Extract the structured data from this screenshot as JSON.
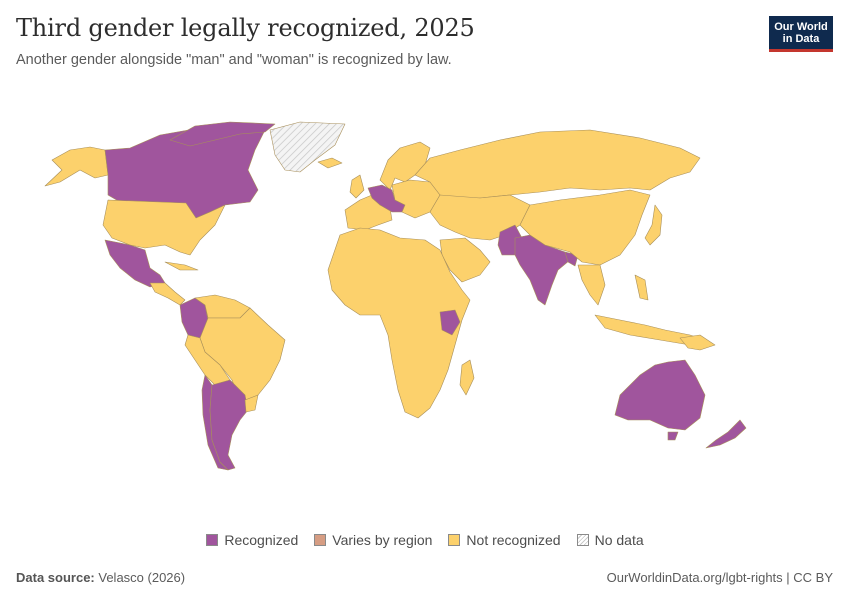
{
  "header": {
    "title": "Third gender legally recognized, 2025",
    "subtitle": "Another gender alongside \"man\" and \"woman\" is recognized by law."
  },
  "logo": {
    "line1": "Our World",
    "line2": "in Data"
  },
  "colors": {
    "recognized": "#a0559d",
    "varies": "#d69d83",
    "not_recognized": "#fcd16c",
    "no_data": "#eeeeee",
    "border": "#a88f5a"
  },
  "legend": [
    {
      "key": "recognized",
      "label": "Recognized"
    },
    {
      "key": "varies",
      "label": "Varies by region"
    },
    {
      "key": "not_recognized",
      "label": "Not recognized"
    },
    {
      "key": "no_data",
      "label": "No data"
    }
  ],
  "map_data": {
    "recognized": [
      "Canada",
      "United States (partial, shown as not recognized)",
      "Mexico",
      "Colombia",
      "Argentina",
      "Chile",
      "Germany",
      "Austria",
      "Netherlands",
      "India",
      "Nepal",
      "Pakistan",
      "Bangladesh",
      "Kenya",
      "Australia",
      "New Zealand"
    ],
    "no_data": [
      "Greenland"
    ]
  },
  "footer": {
    "source_label": "Data source:",
    "source_value": "Velasco (2026)",
    "link": "OurWorldinData.org/lgbt-rights | CC BY"
  }
}
